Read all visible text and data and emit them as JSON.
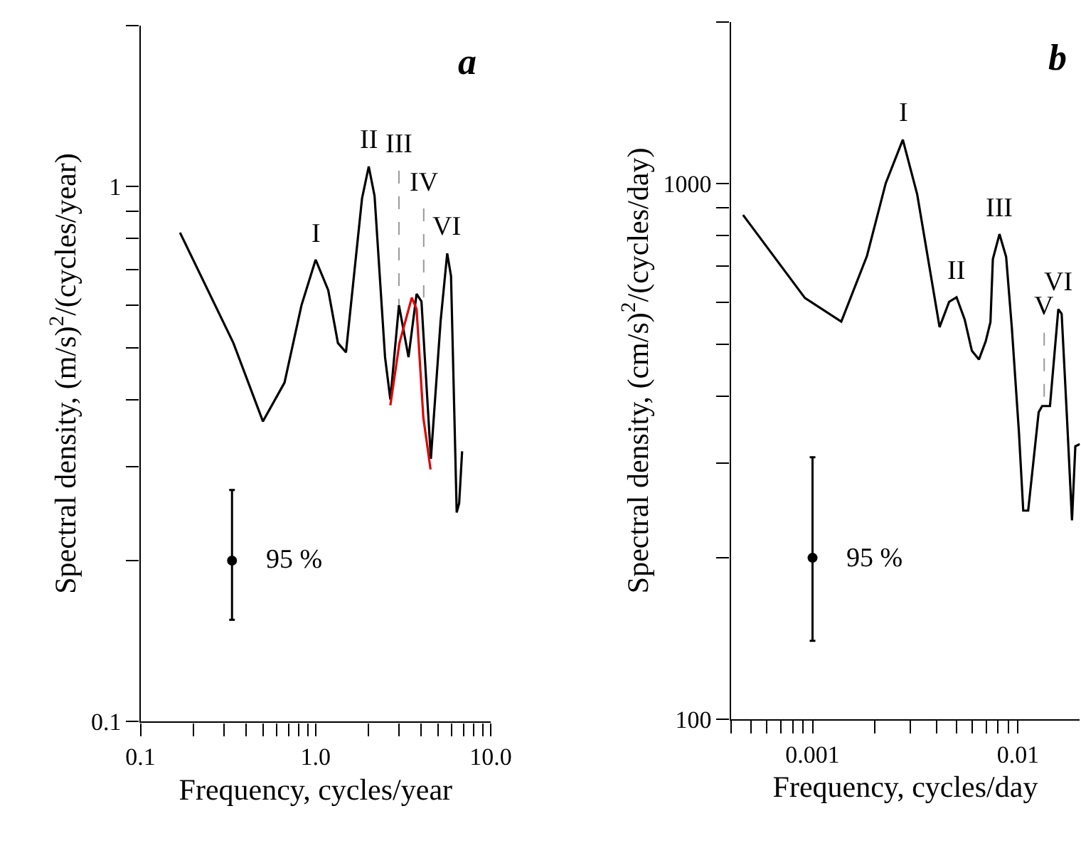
{
  "chart_data": [
    {
      "type": "line",
      "title": "a",
      "xlabel": "Frequency, cycles/year",
      "ylabel": "Spectral density, (m/s)$^{2}$/(cycles/year)",
      "log": "xy",
      "marker": "none",
      "xlim": [
        0.1,
        10
      ],
      "ylim": [
        0.1,
        2
      ],
      "xticks": [
        {
          "value": 0.1,
          "label": "0.1"
        },
        {
          "value": 0.2,
          "label": null
        },
        {
          "value": 0.3,
          "label": null
        },
        {
          "value": 0.4,
          "label": null
        },
        {
          "value": 0.5,
          "label": null
        },
        {
          "value": 0.6,
          "label": null
        },
        {
          "value": 0.7,
          "label": null
        },
        {
          "value": 0.8,
          "label": null
        },
        {
          "value": 0.9,
          "label": null
        },
        {
          "value": 1,
          "label": "1.0"
        },
        {
          "value": 2,
          "label": null
        },
        {
          "value": 3,
          "label": null
        },
        {
          "value": 4,
          "label": null
        },
        {
          "value": 5,
          "label": null
        },
        {
          "value": 6,
          "label": null
        },
        {
          "value": 7,
          "label": null
        },
        {
          "value": 8,
          "label": null
        },
        {
          "value": 9,
          "label": null
        },
        {
          "value": 10,
          "label": "10.0"
        }
      ],
      "yticks": [
        0.1,
        {
          "value": 0.2,
          "label": null
        },
        {
          "value": 0.3,
          "label": null
        },
        {
          "value": 0.4,
          "label": null
        },
        {
          "value": 0.5,
          "label": null
        },
        {
          "value": 0.6,
          "label": null
        },
        {
          "value": 0.7,
          "label": null
        },
        {
          "value": 0.8,
          "label": null
        },
        {
          "value": 0.9,
          "label": null
        },
        1,
        {
          "value": 2,
          "label": null
        }
      ],
      "series": [
        {
          "color": "#000000",
          "line_style": "solid",
          "x": [
            0.168,
            0.339,
            0.5,
            0.664,
            0.83,
            1.0,
            1.18,
            1.34,
            1.49,
            1.84,
            2.01,
            2.17,
            2.49,
            2.67,
            2.99,
            3.39,
            3.77,
            4.02,
            4.55,
            5.17,
            5.64,
            5.93,
            6.39,
            6.6,
            6.86
          ],
          "values": [
            0.82,
            0.51,
            0.364,
            0.43,
            0.6,
            0.73,
            0.64,
            0.51,
            0.49,
            0.95,
            1.09,
            0.96,
            0.48,
            0.4,
            0.6,
            0.48,
            0.63,
            0.61,
            0.31,
            0.56,
            0.75,
            0.68,
            0.246,
            0.256,
            0.32
          ]
        },
        {
          "color": "#e00000",
          "line_style": "solid",
          "x": [
            2.67,
            3.01,
            3.54,
            3.77,
            4.12,
            4.53
          ],
          "values": [
            0.39,
            0.51,
            0.62,
            0.59,
            0.37,
            0.296
          ]
        },
        {
          "color": "#999999",
          "line_style": "dashed",
          "x": [
            2.99,
            2.99
          ],
          "values": [
            1.07,
            0.6
          ]
        },
        {
          "color": "#999999",
          "line_style": "dashed",
          "x": [
            4.14,
            4.14
          ],
          "values": [
            0.91,
            0.62
          ]
        },
        {
          "type": "scatter",
          "color": "#000000",
          "marker": "circle",
          "x": [
            0.333
          ],
          "values": [
            0.2
          ],
          "errors": [
            [
              0.155,
              0.271
            ]
          ]
        }
      ],
      "annotations": [
        {
          "text": "I",
          "x": 1.0,
          "y": 0.73
        },
        {
          "text": "II",
          "x": 2.01,
          "y": 1.09
        },
        {
          "text": "III",
          "x": 2.99,
          "y": 1.07
        },
        {
          "text": "IV",
          "x": 4.14,
          "y": 0.91
        },
        {
          "text": "VI",
          "x": 5.64,
          "y": 0.75
        },
        {
          "text": "95 %",
          "x": 0.333,
          "y": 0.2
        }
      ]
    },
    {
      "type": "line",
      "title": "b",
      "xlabel": "Frequency, cycles/day",
      "ylabel": "Spectral density, (cm/s)$^{2}$/(cycles/day)",
      "log": "xy",
      "marker": "none",
      "xlim": [
        0.0004,
        0.02
      ],
      "ylim": [
        100,
        2000
      ],
      "xticks": [
        {
          "value": 0.0004,
          "label": null
        },
        {
          "value": 0.0005,
          "label": null
        },
        {
          "value": 0.0006,
          "label": null
        },
        {
          "value": 0.0007,
          "label": null
        },
        {
          "value": 0.0008,
          "label": null
        },
        {
          "value": 0.0009,
          "label": null
        },
        0.001,
        {
          "value": 0.002,
          "label": null
        },
        {
          "value": 0.003,
          "label": null
        },
        {
          "value": 0.004,
          "label": null
        },
        {
          "value": 0.005,
          "label": null
        },
        {
          "value": 0.006,
          "label": null
        },
        {
          "value": 0.007,
          "label": null
        },
        {
          "value": 0.008,
          "label": null
        },
        {
          "value": 0.009,
          "label": null
        },
        0.01
      ],
      "yticks": [
        100,
        {
          "value": 200,
          "label": null
        },
        {
          "value": 300,
          "label": null
        },
        {
          "value": 400,
          "label": null
        },
        {
          "value": 500,
          "label": null
        },
        {
          "value": 600,
          "label": null
        },
        {
          "value": 700,
          "label": null
        },
        {
          "value": 800,
          "label": null
        },
        {
          "value": 900,
          "label": null
        },
        1000,
        {
          "value": 2000,
          "label": null
        }
      ],
      "series": [
        {
          "color": "#000000",
          "line_style": "solid",
          "x": [
            0.000459,
            0.000918,
            0.00138,
            0.00184,
            0.00227,
            0.00275,
            0.00323,
            0.00415,
            0.00462,
            0.00502,
            0.0055,
            0.00596,
            0.00645,
            0.00696,
            0.00734,
            0.00754,
            0.00812,
            0.00875,
            0.00933,
            0.0101,
            0.0106,
            0.0112,
            0.0126,
            0.0131,
            0.0143,
            0.0157,
            0.0163,
            0.0173,
            0.0183,
            0.019,
            0.02
          ],
          "values": [
            873,
            611,
            552,
            732,
            1000,
            1206,
            954,
            539,
            601,
            613,
            557,
            487,
            469,
            507,
            551,
            722,
            804,
            729,
            537,
            343,
            245,
            245,
            374,
            384,
            384,
            582,
            571,
            365,
            235,
            323,
            326
          ]
        },
        {
          "color": "#999999",
          "line_style": "dashed",
          "x": [
            0.0134,
            0.0134
          ],
          "values": [
            526,
            384
          ]
        },
        {
          "type": "scatter",
          "color": "#000000",
          "marker": "circle",
          "x": [
            0.001
          ],
          "values": [
            200
          ],
          "errors": [
            [
              140,
              308
            ]
          ]
        }
      ],
      "annotations": [
        {
          "text": "I",
          "x": 0.00275,
          "y": 1206
        },
        {
          "text": "II",
          "x": 0.00502,
          "y": 613
        },
        {
          "text": "III",
          "x": 0.00812,
          "y": 804
        },
        {
          "text": "V",
          "x": 0.0134,
          "y": 526
        },
        {
          "text": "VI",
          "x": 0.0157,
          "y": 582
        },
        {
          "text": "95 %",
          "x": 0.001,
          "y": 200
        }
      ]
    }
  ]
}
